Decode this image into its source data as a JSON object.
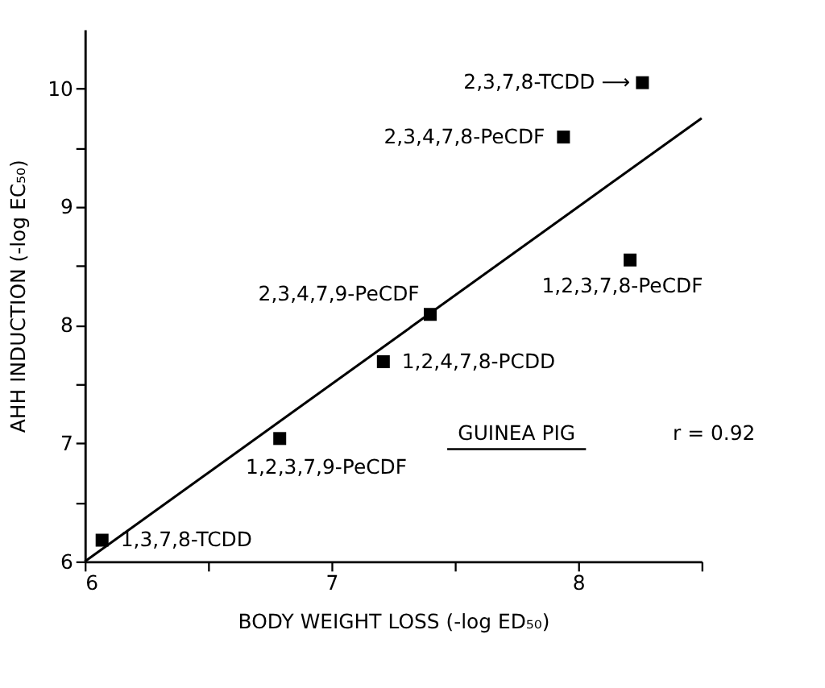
{
  "chart_data": {
    "type": "scatter",
    "xlabel": "BODY WEIGHT LOSS (-log ED₅₀)",
    "ylabel": "AHH INDUCTION (-log EC₅₀)",
    "xlim": [
      6,
      8.5
    ],
    "ylim": [
      6,
      10.5
    ],
    "xticks": [
      6,
      {
        "value": 6.5,
        "label": null
      },
      7,
      {
        "value": 7.5,
        "label": null
      },
      8,
      {
        "value": 8.5,
        "label": null
      }
    ],
    "yticks": [
      6,
      {
        "value": 6.5,
        "label": null
      },
      7,
      {
        "value": 7.5,
        "label": null
      },
      8,
      {
        "value": 8.5,
        "label": null
      },
      9,
      {
        "value": 9.5,
        "label": null
      },
      10
    ],
    "grid": false,
    "series": [
      {
        "color": "#000000",
        "marker": "square",
        "x": [
          8.26,
          7.94,
          8.21,
          7.4,
          7.21,
          6.79,
          6.07
        ],
        "values": [
          10.05,
          9.59,
          8.55,
          8.09,
          7.69,
          7.04,
          6.18
        ]
      },
      {
        "type": "line",
        "color": "#000000",
        "line_style": "solid",
        "marker": "none",
        "x": [
          6.0,
          8.5
        ],
        "values": [
          6.0,
          9.75
        ]
      }
    ],
    "annotations": [
      {
        "text": "2,3,7,8-TCDD ⟶",
        "x": 8.26,
        "y": 10.05
      },
      {
        "text": "2,3,4,7,8-PeCDF",
        "x": 7.94,
        "y": 9.59
      },
      {
        "text": "1,2,3,7,8-PeCDF",
        "x": 8.21,
        "y": 8.55
      },
      {
        "text": "2,3,4,7,9-PeCDF",
        "x": 7.4,
        "y": 8.09
      },
      {
        "text": "1,2,4,7,8-PCDD",
        "x": 7.21,
        "y": 7.69
      },
      {
        "text": "1,2,3,7,9-PeCDF",
        "x": 6.79,
        "y": 7.04
      },
      {
        "text": "1,3,7,8-TCDD",
        "x": 6.07,
        "y": 6.18
      },
      "GUINEA PIG",
      "r = 0.92"
    ]
  }
}
